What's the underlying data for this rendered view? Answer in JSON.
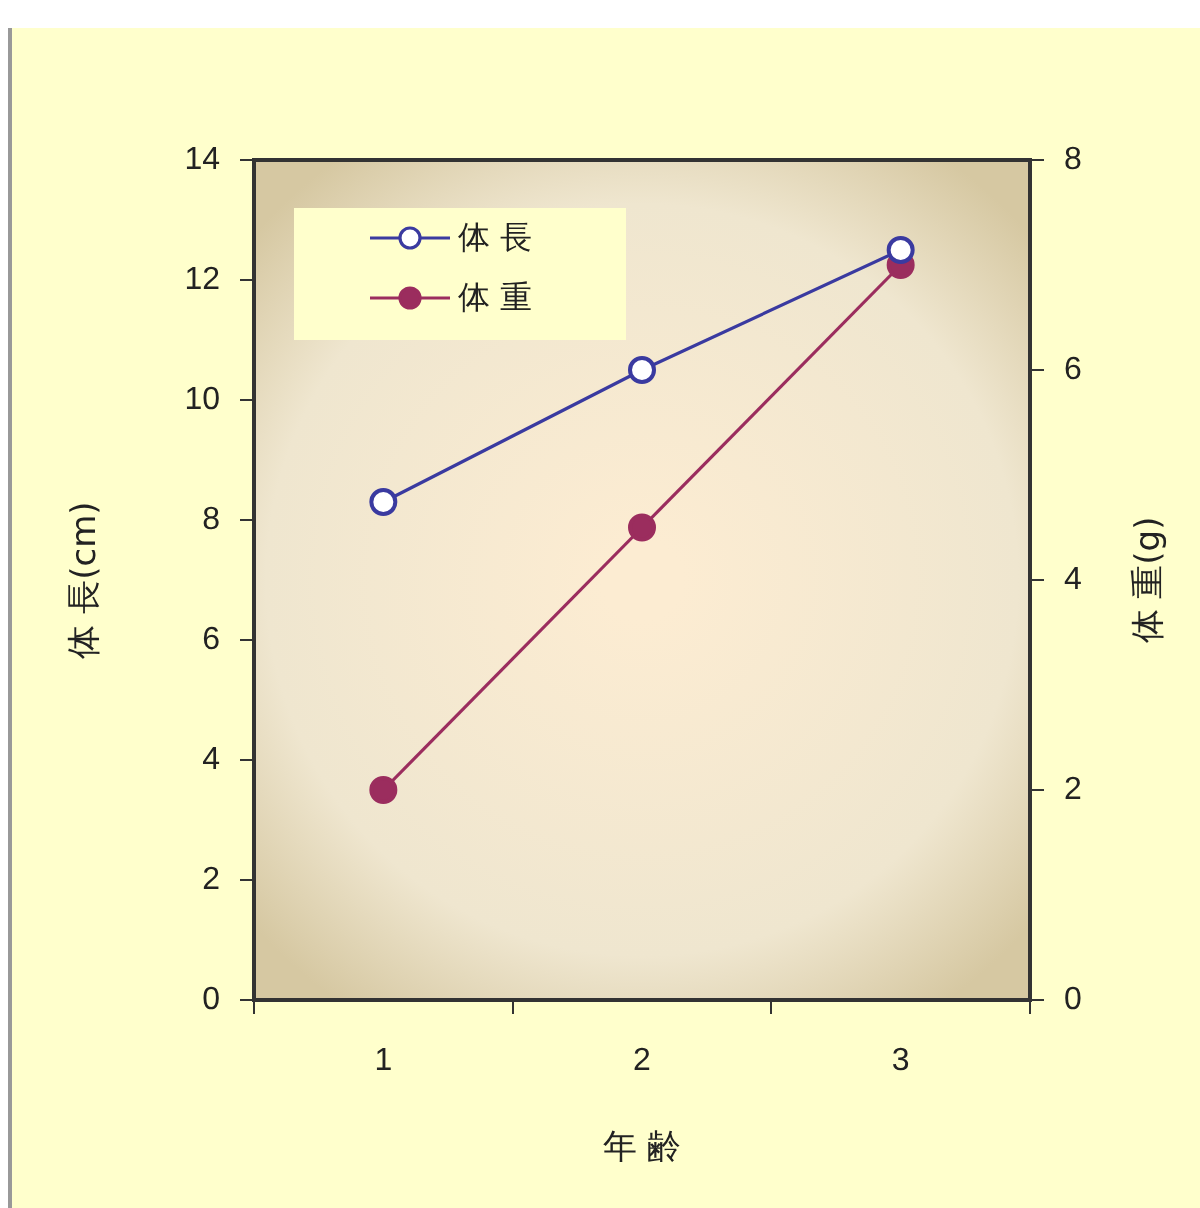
{
  "chart_data": {
    "type": "line",
    "xlabel": "年 齢",
    "ylabel": "体 長(cm)",
    "y2label": "体 重(g)",
    "categories": [
      "1",
      "2",
      "3"
    ],
    "series": [
      {
        "name": "体 長",
        "color": "#3a3aa0",
        "values": [
          8.3,
          10.5,
          12.5
        ]
      },
      {
        "name": "体 重",
        "color": "#9b2d5e",
        "values": [
          2.0,
          4.5,
          7.0
        ],
        "axis": "y2"
      }
    ],
    "ylim": [
      0,
      14
    ],
    "yticks": [
      0,
      2,
      4,
      6,
      8,
      10,
      12,
      14
    ],
    "y2lim": [
      0,
      8
    ],
    "y2ticks": [
      0,
      2,
      4,
      6,
      8
    ],
    "grid": false,
    "legend": "top left",
    "marker": "circle",
    "line_style": "solid"
  }
}
